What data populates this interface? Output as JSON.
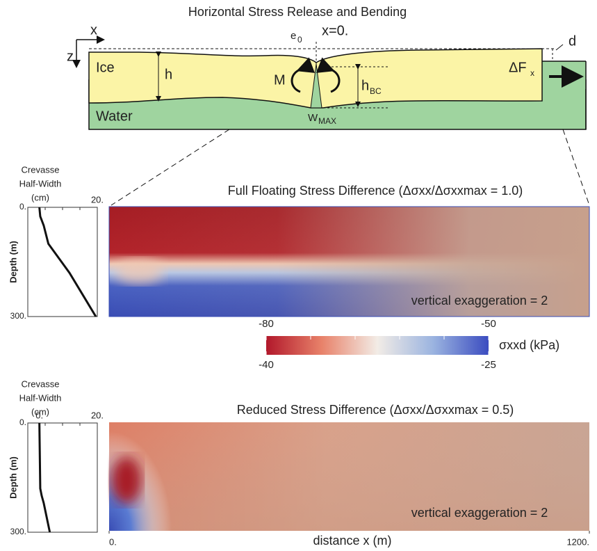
{
  "diagram": {
    "title": "Horizontal Stress Release and Bending",
    "axis_x": "x",
    "axis_z": "z",
    "e": {
      "base": "e",
      "sub": "0"
    },
    "origin": "x=0.",
    "d": "d",
    "ice": "Ice",
    "water": "Water",
    "h": "h",
    "moment": "M",
    "h_bc": {
      "base": "h",
      "sub": "BC"
    },
    "force": {
      "base": "ΔF",
      "sub": "x"
    },
    "w_max": {
      "base": "W",
      "sub": "MAX"
    }
  },
  "profiles": [
    {
      "title_lines": [
        "Crevasse",
        "Half-Width",
        "(cm)"
      ],
      "ylabel": "Depth (m)",
      "xlim": [
        -4,
        20
      ],
      "ylim": [
        0,
        300
      ],
      "xticks": [
        {
          "value": 20,
          "label": "20."
        }
      ],
      "yticks": [
        {
          "value": 0,
          "label": "0."
        },
        {
          "value": 300,
          "label": "300."
        }
      ],
      "depth": [
        0,
        25,
        50,
        100,
        180,
        300
      ],
      "half_width": [
        0,
        0.3,
        1.5,
        3.1,
        10.4,
        19.5
      ]
    },
    {
      "title_lines": [
        "Crevasse",
        "Half-Width",
        "(cm)"
      ],
      "ylabel": "Depth (m)",
      "xlim": [
        -4,
        20
      ],
      "ylim": [
        0,
        300
      ],
      "xticks": [
        {
          "value": 0,
          "label": "0."
        },
        {
          "value": 20,
          "label": "20."
        }
      ],
      "yticks": [
        {
          "value": 0,
          "label": "0."
        },
        {
          "value": 300,
          "label": "300."
        }
      ],
      "depth": [
        0,
        180,
        200,
        220,
        300
      ],
      "half_width": [
        0,
        0.3,
        0.8,
        1.5,
        3.6
      ]
    }
  ],
  "heatmaps": {
    "panels": [
      {
        "title": "Full Floating Stress Difference (Δσxx/Δσxxmax = 1.0)",
        "annotation": "vertical exaggeration = 2"
      },
      {
        "title": "Reduced Stress Difference (Δσxx/Δσxxmax = 0.5)",
        "annotation": "vertical exaggeration = 2"
      }
    ],
    "xlim": [
      0,
      1200
    ],
    "xticks": [
      {
        "value": 0,
        "label": "0."
      },
      {
        "value": 1200,
        "label": "1200."
      }
    ],
    "xlabel": "distance x (m)"
  },
  "colorbar": {
    "label": "σxxd (kPa)",
    "top_lim": [
      -80,
      -50
    ],
    "top_ticks": [
      -80,
      -50
    ],
    "bottom_lim": [
      -40,
      -25
    ],
    "bottom_ticks": [
      -40,
      -25
    ]
  }
}
